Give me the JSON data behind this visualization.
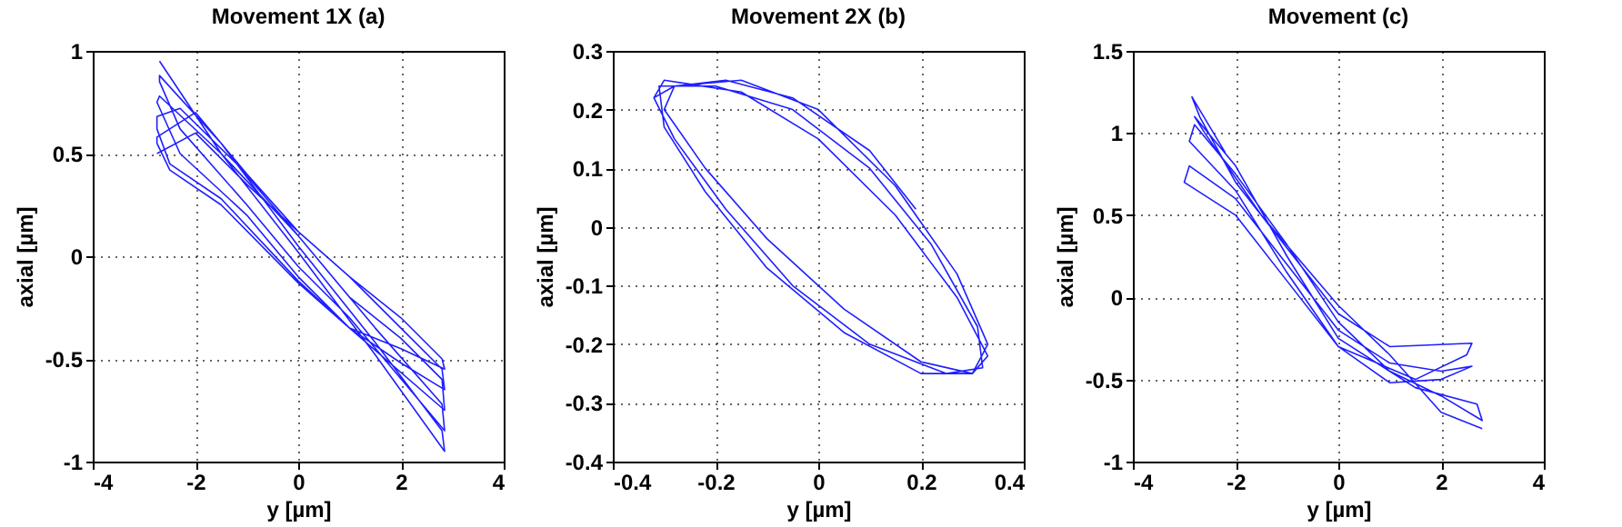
{
  "chart_data": [
    {
      "type": "line",
      "title": "Movement 1X (a)",
      "xlabel": "y [µm]",
      "ylabel": "axial [µm]",
      "xlim": [
        -4,
        4
      ],
      "ylim": [
        -1,
        1
      ],
      "xticks": [
        -4,
        -2,
        0,
        2,
        4
      ],
      "yticks": [
        -1,
        -0.5,
        0,
        0.5,
        1
      ],
      "grid": true,
      "series": [
        {
          "color": "#1f1fff",
          "x": [
            -2.7,
            -1.5,
            0,
            1.5,
            2.85,
            2.8,
            1.5,
            0,
            -1.5,
            -2.7,
            -2.7,
            -2.3,
            -1,
            0,
            1,
            2.85,
            2.8,
            1.5,
            0,
            -1.5,
            -2.7,
            -2.75,
            -2.3,
            -1,
            0,
            1,
            2.85,
            2.8,
            2,
            1,
            0,
            -1.2,
            -2.3,
            -2.75,
            -2.75,
            -2.5,
            -1.5,
            0,
            1,
            2,
            2.85,
            2.8,
            2,
            1,
            0,
            -1,
            -2,
            -2.75,
            -2.75,
            -2.5,
            -1.5,
            0,
            1,
            2,
            2.85,
            2.8,
            2,
            1,
            0,
            -1,
            -2,
            -2.75
          ],
          "values": [
            0.95,
            0.5,
            0.02,
            -0.48,
            -0.95,
            -0.85,
            -0.42,
            0.05,
            0.55,
            0.88,
            0.85,
            0.62,
            0.25,
            -0.05,
            -0.3,
            -0.85,
            -0.72,
            -0.35,
            0.1,
            0.5,
            0.78,
            0.75,
            0.5,
            0.2,
            -0.1,
            -0.35,
            -0.75,
            -0.6,
            -0.4,
            -0.2,
            0.1,
            0.45,
            0.72,
            0.68,
            0.62,
            0.45,
            0.28,
            -0.12,
            -0.35,
            -0.52,
            -0.65,
            -0.55,
            -0.35,
            -0.1,
            0.12,
            0.4,
            0.7,
            0.58,
            0.55,
            0.42,
            0.25,
            -0.13,
            -0.35,
            -0.45,
            -0.55,
            -0.5,
            -0.3,
            -0.1,
            0.12,
            0.35,
            0.6,
            0.5
          ]
        }
      ]
    },
    {
      "type": "line",
      "title": "Movement 2X (b)",
      "xlabel": "y [µm]",
      "ylabel": "axial [µm]",
      "xlim": [
        -0.4,
        0.4
      ],
      "ylim": [
        -0.4,
        0.3
      ],
      "xticks": [
        -0.4,
        -0.2,
        0,
        0.2,
        0.4
      ],
      "yticks": [
        -0.4,
        -0.3,
        -0.2,
        -0.1,
        0,
        0.1,
        0.2,
        0.3
      ],
      "grid": true,
      "series": [
        {
          "color": "#1f1fff",
          "x": [
            -0.32,
            -0.28,
            -0.15,
            0,
            0.15,
            0.27,
            0.33,
            0.3,
            0.2,
            0.05,
            -0.1,
            -0.22,
            -0.3,
            -0.31,
            -0.2,
            -0.05,
            0.1,
            0.22,
            0.31,
            0.32,
            0.25,
            0.1,
            -0.05,
            -0.18,
            -0.28,
            -0.32,
            -0.3,
            -0.15,
            0,
            0.15,
            0.27,
            0.33,
            0.3,
            0.2,
            0.05,
            -0.1,
            -0.22,
            -0.3,
            -0.28,
            -0.18,
            -0.05,
            0.1,
            0.19
          ],
          "values": [
            0.22,
            0.24,
            0.25,
            0.2,
            0.07,
            -0.08,
            -0.2,
            -0.25,
            -0.25,
            -0.18,
            -0.07,
            0.06,
            0.17,
            0.24,
            0.24,
            0.2,
            0.1,
            -0.03,
            -0.17,
            -0.24,
            -0.25,
            -0.2,
            -0.1,
            0.03,
            0.15,
            0.22,
            0.25,
            0.23,
            0.15,
            0.02,
            -0.12,
            -0.22,
            -0.25,
            -0.23,
            -0.14,
            -0.02,
            0.1,
            0.2,
            0.24,
            0.25,
            0.22,
            0.13,
            0.03
          ]
        }
      ]
    },
    {
      "type": "line",
      "title": "Movement (c)",
      "xlabel": "y [µm]",
      "ylabel": "axial [µm]",
      "xlim": [
        -4,
        4
      ],
      "ylim": [
        -1,
        1.5
      ],
      "xticks": [
        -4,
        -2,
        0,
        2,
        4
      ],
      "yticks": [
        -1,
        -0.5,
        0,
        0.5,
        1,
        1.5
      ],
      "grid": true,
      "series": [
        {
          "color": "#1f1fff",
          "x": [
            -2.2,
            -2.85,
            -2.7,
            -2,
            -1,
            0,
            1,
            2.6,
            2.5,
            1.5,
            0,
            -1,
            -2,
            -3,
            -2.9,
            -2,
            -1,
            0,
            1,
            2,
            2.6,
            2,
            1,
            0,
            -1,
            -2,
            -2.9,
            -2.8,
            -2,
            -1,
            0,
            1,
            2,
            2.8,
            2.7,
            1.5,
            0,
            -1,
            -2,
            -2.8,
            -2.6,
            -1.5,
            0,
            1,
            2,
            2.8
          ],
          "values": [
            0.88,
            1.22,
            1.1,
            0.7,
            0.3,
            -0.1,
            -0.3,
            -0.28,
            -0.35,
            -0.5,
            -0.3,
            0.1,
            0.5,
            0.7,
            0.8,
            0.6,
            0.2,
            -0.2,
            -0.4,
            -0.45,
            -0.42,
            -0.5,
            -0.52,
            -0.3,
            0.15,
            0.65,
            0.95,
            1.05,
            0.75,
            0.32,
            -0.15,
            -0.45,
            -0.6,
            -0.75,
            -0.65,
            -0.55,
            -0.25,
            0.25,
            0.8,
            1.1,
            1.0,
            0.5,
            -0.05,
            -0.35,
            -0.7,
            -0.8
          ]
        }
      ]
    }
  ]
}
